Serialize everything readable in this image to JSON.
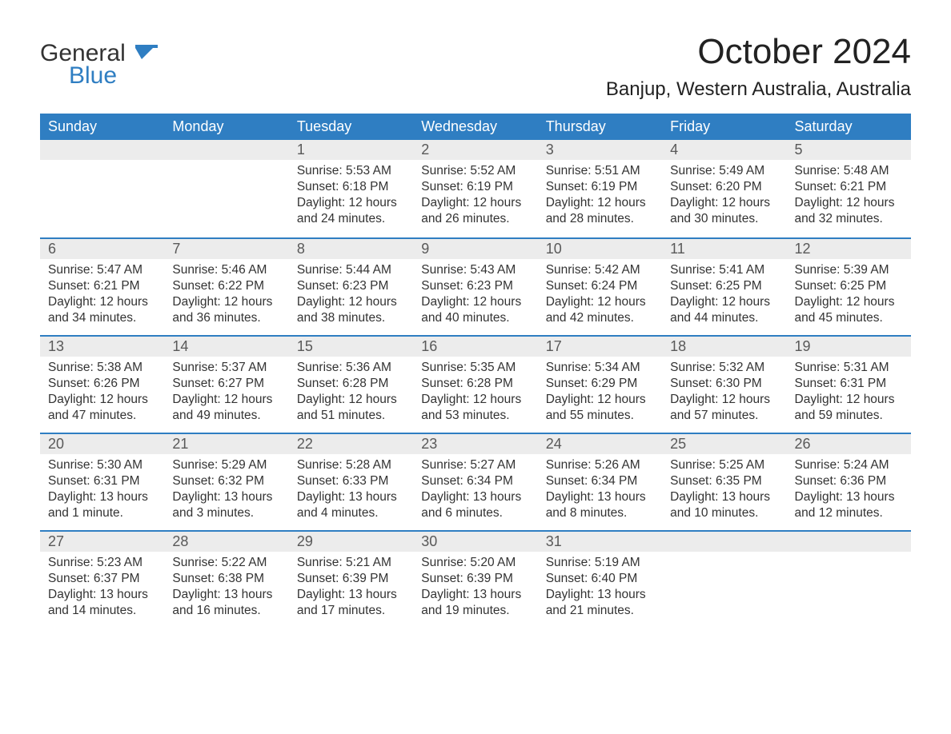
{
  "brand": {
    "word1": "General",
    "word2": "Blue",
    "accent_color": "#2f7ec2"
  },
  "title": "October 2024",
  "location": "Banjup, Western Australia, Australia",
  "colors": {
    "header_bg": "#2f7ec2",
    "header_text": "#ffffff",
    "daynum_bg": "#ececec",
    "daynum_text": "#595959",
    "row_divider": "#2f7ec2",
    "body_text": "#333333",
    "page_bg": "#ffffff"
  },
  "layout": {
    "columns": 7,
    "rows": 5,
    "first_weekday": "Sunday",
    "month_start_column_index": 2,
    "fontsize_title": 44,
    "fontsize_location": 24,
    "fontsize_weekday": 18,
    "fontsize_daynum": 18,
    "fontsize_body": 15.5
  },
  "weekdays": [
    "Sunday",
    "Monday",
    "Tuesday",
    "Wednesday",
    "Thursday",
    "Friday",
    "Saturday"
  ],
  "days": [
    {
      "n": 1,
      "sunrise": "5:53 AM",
      "sunset": "6:18 PM",
      "daylight": "12 hours and 24 minutes."
    },
    {
      "n": 2,
      "sunrise": "5:52 AM",
      "sunset": "6:19 PM",
      "daylight": "12 hours and 26 minutes."
    },
    {
      "n": 3,
      "sunrise": "5:51 AM",
      "sunset": "6:19 PM",
      "daylight": "12 hours and 28 minutes."
    },
    {
      "n": 4,
      "sunrise": "5:49 AM",
      "sunset": "6:20 PM",
      "daylight": "12 hours and 30 minutes."
    },
    {
      "n": 5,
      "sunrise": "5:48 AM",
      "sunset": "6:21 PM",
      "daylight": "12 hours and 32 minutes."
    },
    {
      "n": 6,
      "sunrise": "5:47 AM",
      "sunset": "6:21 PM",
      "daylight": "12 hours and 34 minutes."
    },
    {
      "n": 7,
      "sunrise": "5:46 AM",
      "sunset": "6:22 PM",
      "daylight": "12 hours and 36 minutes."
    },
    {
      "n": 8,
      "sunrise": "5:44 AM",
      "sunset": "6:23 PM",
      "daylight": "12 hours and 38 minutes."
    },
    {
      "n": 9,
      "sunrise": "5:43 AM",
      "sunset": "6:23 PM",
      "daylight": "12 hours and 40 minutes."
    },
    {
      "n": 10,
      "sunrise": "5:42 AM",
      "sunset": "6:24 PM",
      "daylight": "12 hours and 42 minutes."
    },
    {
      "n": 11,
      "sunrise": "5:41 AM",
      "sunset": "6:25 PM",
      "daylight": "12 hours and 44 minutes."
    },
    {
      "n": 12,
      "sunrise": "5:39 AM",
      "sunset": "6:25 PM",
      "daylight": "12 hours and 45 minutes."
    },
    {
      "n": 13,
      "sunrise": "5:38 AM",
      "sunset": "6:26 PM",
      "daylight": "12 hours and 47 minutes."
    },
    {
      "n": 14,
      "sunrise": "5:37 AM",
      "sunset": "6:27 PM",
      "daylight": "12 hours and 49 minutes."
    },
    {
      "n": 15,
      "sunrise": "5:36 AM",
      "sunset": "6:28 PM",
      "daylight": "12 hours and 51 minutes."
    },
    {
      "n": 16,
      "sunrise": "5:35 AM",
      "sunset": "6:28 PM",
      "daylight": "12 hours and 53 minutes."
    },
    {
      "n": 17,
      "sunrise": "5:34 AM",
      "sunset": "6:29 PM",
      "daylight": "12 hours and 55 minutes."
    },
    {
      "n": 18,
      "sunrise": "5:32 AM",
      "sunset": "6:30 PM",
      "daylight": "12 hours and 57 minutes."
    },
    {
      "n": 19,
      "sunrise": "5:31 AM",
      "sunset": "6:31 PM",
      "daylight": "12 hours and 59 minutes."
    },
    {
      "n": 20,
      "sunrise": "5:30 AM",
      "sunset": "6:31 PM",
      "daylight": "13 hours and 1 minute."
    },
    {
      "n": 21,
      "sunrise": "5:29 AM",
      "sunset": "6:32 PM",
      "daylight": "13 hours and 3 minutes."
    },
    {
      "n": 22,
      "sunrise": "5:28 AM",
      "sunset": "6:33 PM",
      "daylight": "13 hours and 4 minutes."
    },
    {
      "n": 23,
      "sunrise": "5:27 AM",
      "sunset": "6:34 PM",
      "daylight": "13 hours and 6 minutes."
    },
    {
      "n": 24,
      "sunrise": "5:26 AM",
      "sunset": "6:34 PM",
      "daylight": "13 hours and 8 minutes."
    },
    {
      "n": 25,
      "sunrise": "5:25 AM",
      "sunset": "6:35 PM",
      "daylight": "13 hours and 10 minutes."
    },
    {
      "n": 26,
      "sunrise": "5:24 AM",
      "sunset": "6:36 PM",
      "daylight": "13 hours and 12 minutes."
    },
    {
      "n": 27,
      "sunrise": "5:23 AM",
      "sunset": "6:37 PM",
      "daylight": "13 hours and 14 minutes."
    },
    {
      "n": 28,
      "sunrise": "5:22 AM",
      "sunset": "6:38 PM",
      "daylight": "13 hours and 16 minutes."
    },
    {
      "n": 29,
      "sunrise": "5:21 AM",
      "sunset": "6:39 PM",
      "daylight": "13 hours and 17 minutes."
    },
    {
      "n": 30,
      "sunrise": "5:20 AM",
      "sunset": "6:39 PM",
      "daylight": "13 hours and 19 minutes."
    },
    {
      "n": 31,
      "sunrise": "5:19 AM",
      "sunset": "6:40 PM",
      "daylight": "13 hours and 21 minutes."
    }
  ],
  "labels": {
    "sunrise_prefix": "Sunrise: ",
    "sunset_prefix": "Sunset: ",
    "daylight_prefix": "Daylight: "
  }
}
